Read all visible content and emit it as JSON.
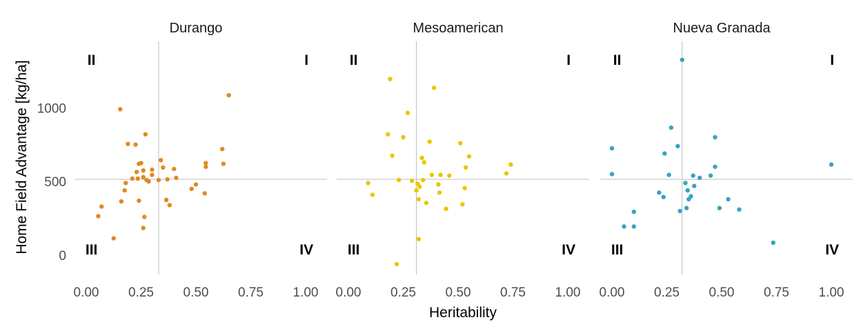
{
  "chart_data": {
    "type": "scatter",
    "xlabel": "Heritability",
    "ylabel": "Home Field Advantage [kg/ha]",
    "xlim": [
      0,
      1
    ],
    "ylim": [
      -130,
      1450
    ],
    "x_ticks": [
      "0.00",
      "0.25",
      "0.50",
      "0.75",
      "1.00"
    ],
    "y_ticks": [
      "0",
      "500",
      "1000"
    ],
    "grid": false,
    "quadrant_labels": [
      "I",
      "II",
      "III",
      "IV"
    ],
    "panels": [
      {
        "title": "Durango",
        "color": "#E08A22",
        "ref_x": 0.33,
        "ref_y": 515,
        "points": [
          {
            "x": 0.055,
            "y": 265
          },
          {
            "x": 0.07,
            "y": 330
          },
          {
            "x": 0.125,
            "y": 115
          },
          {
            "x": 0.155,
            "y": 990
          },
          {
            "x": 0.16,
            "y": 365
          },
          {
            "x": 0.175,
            "y": 440
          },
          {
            "x": 0.18,
            "y": 490
          },
          {
            "x": 0.19,
            "y": 755
          },
          {
            "x": 0.21,
            "y": 520
          },
          {
            "x": 0.225,
            "y": 750
          },
          {
            "x": 0.23,
            "y": 565
          },
          {
            "x": 0.235,
            "y": 520
          },
          {
            "x": 0.24,
            "y": 620
          },
          {
            "x": 0.24,
            "y": 370
          },
          {
            "x": 0.25,
            "y": 625
          },
          {
            "x": 0.26,
            "y": 575
          },
          {
            "x": 0.26,
            "y": 530
          },
          {
            "x": 0.26,
            "y": 185
          },
          {
            "x": 0.265,
            "y": 260
          },
          {
            "x": 0.27,
            "y": 820
          },
          {
            "x": 0.275,
            "y": 510
          },
          {
            "x": 0.285,
            "y": 500
          },
          {
            "x": 0.3,
            "y": 580
          },
          {
            "x": 0.3,
            "y": 545
          },
          {
            "x": 0.33,
            "y": 510
          },
          {
            "x": 0.34,
            "y": 645
          },
          {
            "x": 0.35,
            "y": 595
          },
          {
            "x": 0.365,
            "y": 375
          },
          {
            "x": 0.37,
            "y": 515
          },
          {
            "x": 0.38,
            "y": 340
          },
          {
            "x": 0.4,
            "y": 585
          },
          {
            "x": 0.41,
            "y": 525
          },
          {
            "x": 0.48,
            "y": 450
          },
          {
            "x": 0.5,
            "y": 480
          },
          {
            "x": 0.54,
            "y": 420
          },
          {
            "x": 0.545,
            "y": 600
          },
          {
            "x": 0.545,
            "y": 625
          },
          {
            "x": 0.62,
            "y": 720
          },
          {
            "x": 0.625,
            "y": 620
          },
          {
            "x": 0.65,
            "y": 1085
          }
        ]
      },
      {
        "title": "Mesoamerican",
        "color": "#E6C800",
        "ref_x": 0.31,
        "ref_y": 515,
        "points": [
          {
            "x": 0.09,
            "y": 490
          },
          {
            "x": 0.11,
            "y": 410
          },
          {
            "x": 0.18,
            "y": 820
          },
          {
            "x": 0.19,
            "y": 1195
          },
          {
            "x": 0.2,
            "y": 675
          },
          {
            "x": 0.22,
            "y": -60
          },
          {
            "x": 0.23,
            "y": 510
          },
          {
            "x": 0.25,
            "y": 800
          },
          {
            "x": 0.27,
            "y": 965
          },
          {
            "x": 0.29,
            "y": 505
          },
          {
            "x": 0.31,
            "y": 440
          },
          {
            "x": 0.315,
            "y": 485
          },
          {
            "x": 0.32,
            "y": 110
          },
          {
            "x": 0.32,
            "y": 380
          },
          {
            "x": 0.325,
            "y": 465
          },
          {
            "x": 0.335,
            "y": 660
          },
          {
            "x": 0.34,
            "y": 510
          },
          {
            "x": 0.345,
            "y": 630
          },
          {
            "x": 0.355,
            "y": 355
          },
          {
            "x": 0.37,
            "y": 770
          },
          {
            "x": 0.38,
            "y": 545
          },
          {
            "x": 0.39,
            "y": 1135
          },
          {
            "x": 0.41,
            "y": 480
          },
          {
            "x": 0.415,
            "y": 425
          },
          {
            "x": 0.42,
            "y": 545
          },
          {
            "x": 0.445,
            "y": 315
          },
          {
            "x": 0.46,
            "y": 540
          },
          {
            "x": 0.51,
            "y": 760
          },
          {
            "x": 0.52,
            "y": 345
          },
          {
            "x": 0.53,
            "y": 455
          },
          {
            "x": 0.535,
            "y": 595
          },
          {
            "x": 0.55,
            "y": 670
          },
          {
            "x": 0.72,
            "y": 555
          },
          {
            "x": 0.74,
            "y": 615
          }
        ]
      },
      {
        "title": "Nueva Granada",
        "color": "#3AA2BE",
        "ref_x": 0.32,
        "ref_y": 515,
        "points": [
          {
            "x": 0.0,
            "y": 725
          },
          {
            "x": 0.0,
            "y": 550
          },
          {
            "x": 0.055,
            "y": 195
          },
          {
            "x": 0.1,
            "y": 295
          },
          {
            "x": 0.1,
            "y": 195
          },
          {
            "x": 0.215,
            "y": 425
          },
          {
            "x": 0.235,
            "y": 395
          },
          {
            "x": 0.24,
            "y": 690
          },
          {
            "x": 0.26,
            "y": 545
          },
          {
            "x": 0.27,
            "y": 865
          },
          {
            "x": 0.3,
            "y": 740
          },
          {
            "x": 0.31,
            "y": 300
          },
          {
            "x": 0.32,
            "y": 1325
          },
          {
            "x": 0.335,
            "y": 490
          },
          {
            "x": 0.34,
            "y": 320
          },
          {
            "x": 0.345,
            "y": 440
          },
          {
            "x": 0.35,
            "y": 380
          },
          {
            "x": 0.36,
            "y": 400
          },
          {
            "x": 0.37,
            "y": 540
          },
          {
            "x": 0.375,
            "y": 470
          },
          {
            "x": 0.4,
            "y": 525
          },
          {
            "x": 0.45,
            "y": 540
          },
          {
            "x": 0.47,
            "y": 800
          },
          {
            "x": 0.47,
            "y": 600
          },
          {
            "x": 0.49,
            "y": 320
          },
          {
            "x": 0.53,
            "y": 380
          },
          {
            "x": 0.58,
            "y": 310
          },
          {
            "x": 0.735,
            "y": 85
          },
          {
            "x": 1.0,
            "y": 615
          }
        ]
      }
    ]
  }
}
